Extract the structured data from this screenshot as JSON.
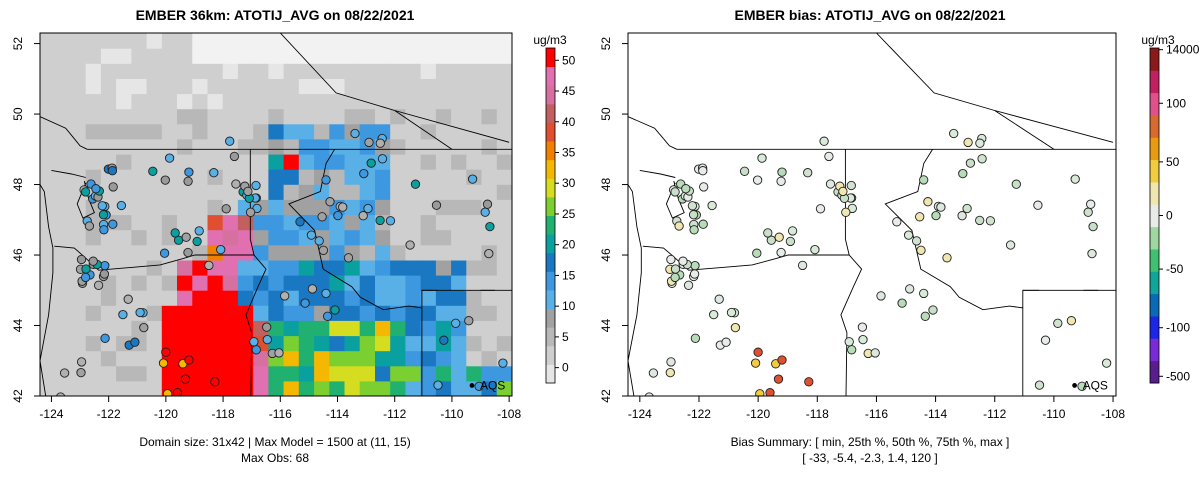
{
  "chart_data": [
    {
      "type": "heatmap",
      "title": "EMBER 36km: ATOTIJ_AVG on 08/22/2021",
      "xticks": [
        -124,
        -122,
        -120,
        -118,
        -116,
        -114,
        -112,
        -110,
        -108
      ],
      "xtick_labels": [
        "-124",
        "-122",
        "-120",
        "-118",
        "-116",
        "-114",
        "-112",
        "-110",
        "-108"
      ],
      "yticks": [
        42,
        44,
        46,
        48,
        50,
        52
      ],
      "ytick_labels": [
        "42",
        "44",
        "46",
        "48",
        "50",
        "52"
      ],
      "xlim": [
        -124.4,
        -107.9
      ],
      "ylim": [
        42.0,
        52.3
      ],
      "colorbar": {
        "unit": "ug/m3",
        "ticks": [
          0,
          5,
          10,
          15,
          20,
          25,
          30,
          35,
          40,
          45,
          50
        ],
        "tick_labels": [
          "0",
          "5",
          "10",
          "15",
          "20",
          "25",
          "30",
          "35",
          "40",
          "45",
          "50"
        ],
        "range": [
          -2.5,
          52
        ],
        "colors": [
          "#e6e6e6",
          "#cfcfcf",
          "#b8b8b8",
          "#a1a1a1",
          "#58b0e6",
          "#3d98e0",
          "#1a78c2",
          "#0aa0a0",
          "#20b070",
          "#7ccf30",
          "#d6dc20",
          "#f5b800",
          "#f08000",
          "#e05030",
          "#c26060",
          "#d670a0",
          "#e070b0",
          "#ff0000"
        ]
      },
      "aqs_label": "AQS",
      "aqs_marker": {
        "lon": -109.3,
        "lat": 42.3
      },
      "footer": [
        "Domain size: 31x42 | Max Model = 1500 at (11, 15)",
        "Max Obs: 68"
      ]
    },
    {
      "type": "scatter",
      "title": "EMBER bias: ATOTIJ_AVG on 08/22/2021",
      "xticks": [
        -124,
        -122,
        -120,
        -118,
        -116,
        -114,
        -112,
        -110,
        -108
      ],
      "xtick_labels": [
        "-124",
        "-122",
        "-120",
        "-118",
        "-116",
        "-114",
        "-112",
        "-110",
        "-108"
      ],
      "yticks": [
        42,
        44,
        46,
        48,
        50,
        52
      ],
      "ytick_labels": [
        "42",
        "44",
        "46",
        "48",
        "50",
        "52"
      ],
      "xlim": [
        -124.4,
        -107.9
      ],
      "ylim": [
        42.0,
        52.3
      ],
      "colorbar": {
        "unit": "ug/m3",
        "ticks": [
          -500,
          -100,
          -50,
          0,
          50,
          100,
          14000
        ],
        "tick_labels": [
          "-500",
          "-100",
          "-50",
          "0",
          "50",
          "100",
          "14000"
        ],
        "colors": [
          "#5a1e8c",
          "#7a2bd6",
          "#1c26e6",
          "#0a6ab5",
          "#10a59a",
          "#40c070",
          "#9ed8a0",
          "#e8ece8",
          "#f0e6b0",
          "#f2cc40",
          "#e89a10",
          "#d86a30",
          "#e0508a",
          "#c02060",
          "#8b1a1a"
        ]
      },
      "aqs_label": "AQS",
      "aqs_marker": {
        "lon": -109.3,
        "lat": 42.3
      },
      "summary": [
        "Bias Summary: [ min, 25th %, 50th %, 75th %, max ]",
        "[ -33,   -5.4,   -2.3,   1.4,   120 ]"
      ]
    }
  ],
  "colors": {
    "background": "#ffffff",
    "axis": "#000000",
    "border_lines": "#000000"
  }
}
